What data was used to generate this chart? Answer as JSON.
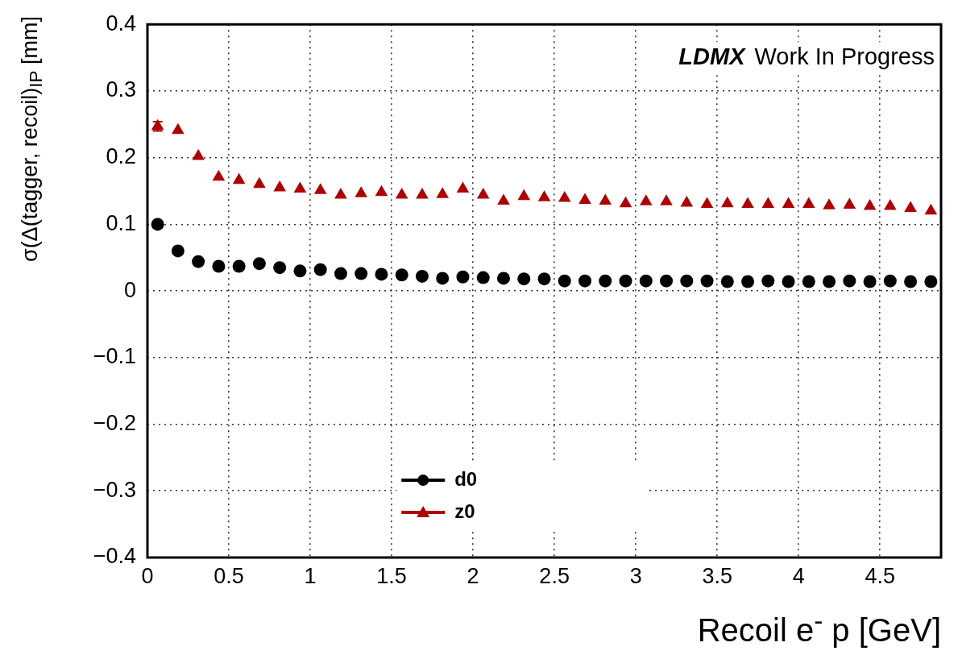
{
  "chart_data": {
    "type": "scatter",
    "xlabel": "Recoil e$^{-}$ p [GeV]",
    "ylabel": "σ(Δ(tagger, recoil)$_{IP}$ [mm]",
    "annotations": [
      "LDMX",
      "Work In Progress"
    ],
    "x": [
      0.0625,
      0.1875,
      0.3125,
      0.4375,
      0.5625,
      0.6875,
      0.8125,
      0.9375,
      1.0625,
      1.1875,
      1.3125,
      1.4375,
      1.5625,
      1.6875,
      1.8125,
      1.9375,
      2.0625,
      2.1875,
      2.3125,
      2.4375,
      2.5625,
      2.6875,
      2.8125,
      2.9375,
      3.0625,
      3.1875,
      3.3125,
      3.4375,
      3.5625,
      3.6875,
      3.8125,
      3.9375,
      4.0625,
      4.1875,
      4.3125,
      4.4375,
      4.5625,
      4.6875,
      4.8125
    ],
    "series": [
      {
        "name": "d0",
        "color": "#000000",
        "marker": "circle",
        "values": [
          0.1,
          0.06,
          0.044,
          0.037,
          0.037,
          0.041,
          0.035,
          0.03,
          0.032,
          0.026,
          0.026,
          0.025,
          0.024,
          0.022,
          0.019,
          0.021,
          0.02,
          0.019,
          0.018,
          0.018,
          0.015,
          0.015,
          0.015,
          0.015,
          0.015,
          0.015,
          0.015,
          0.015,
          0.014,
          0.014,
          0.015,
          0.014,
          0.014,
          0.014,
          0.015,
          0.014,
          0.015,
          0.014,
          0.014
        ]
      },
      {
        "name": "z0",
        "color": "#b00000",
        "marker": "triangle",
        "values": [
          0.247,
          0.241,
          0.202,
          0.171,
          0.166,
          0.16,
          0.155,
          0.153,
          0.151,
          0.144,
          0.146,
          0.148,
          0.144,
          0.144,
          0.145,
          0.153,
          0.144,
          0.135,
          0.142,
          0.14,
          0.139,
          0.136,
          0.135,
          0.131,
          0.134,
          0.134,
          0.132,
          0.13,
          0.131,
          0.13,
          0.13,
          0.13,
          0.13,
          0.128,
          0.129,
          0.127,
          0.127,
          0.124,
          0.12
        ],
        "errors": [
          0.007,
          null,
          null,
          null,
          null,
          null,
          null,
          null,
          null,
          null,
          null,
          null,
          null,
          null,
          null,
          null,
          null,
          null,
          null,
          null,
          null,
          null,
          null,
          null,
          null,
          null,
          null,
          null,
          null,
          null,
          null,
          null,
          null,
          null,
          null,
          null,
          null,
          null,
          null
        ]
      }
    ],
    "xlim": [
      0,
      4.875
    ],
    "xticks": [
      0,
      0.5,
      1,
      1.5,
      2,
      2.5,
      3,
      3.5,
      4,
      4.5
    ],
    "ylim": [
      -0.4,
      0.4
    ],
    "yticks": [
      {
        "value": -0.4,
        "label": "−0.4"
      },
      {
        "value": -0.3,
        "label": "−0.3"
      },
      {
        "value": -0.2,
        "label": "−0.2"
      },
      {
        "value": -0.1,
        "label": "−0.1"
      },
      0,
      0.1,
      0.2,
      0.3,
      0.4
    ],
    "grid": true,
    "legend": "bottom left",
    "line_style": "dotted"
  }
}
